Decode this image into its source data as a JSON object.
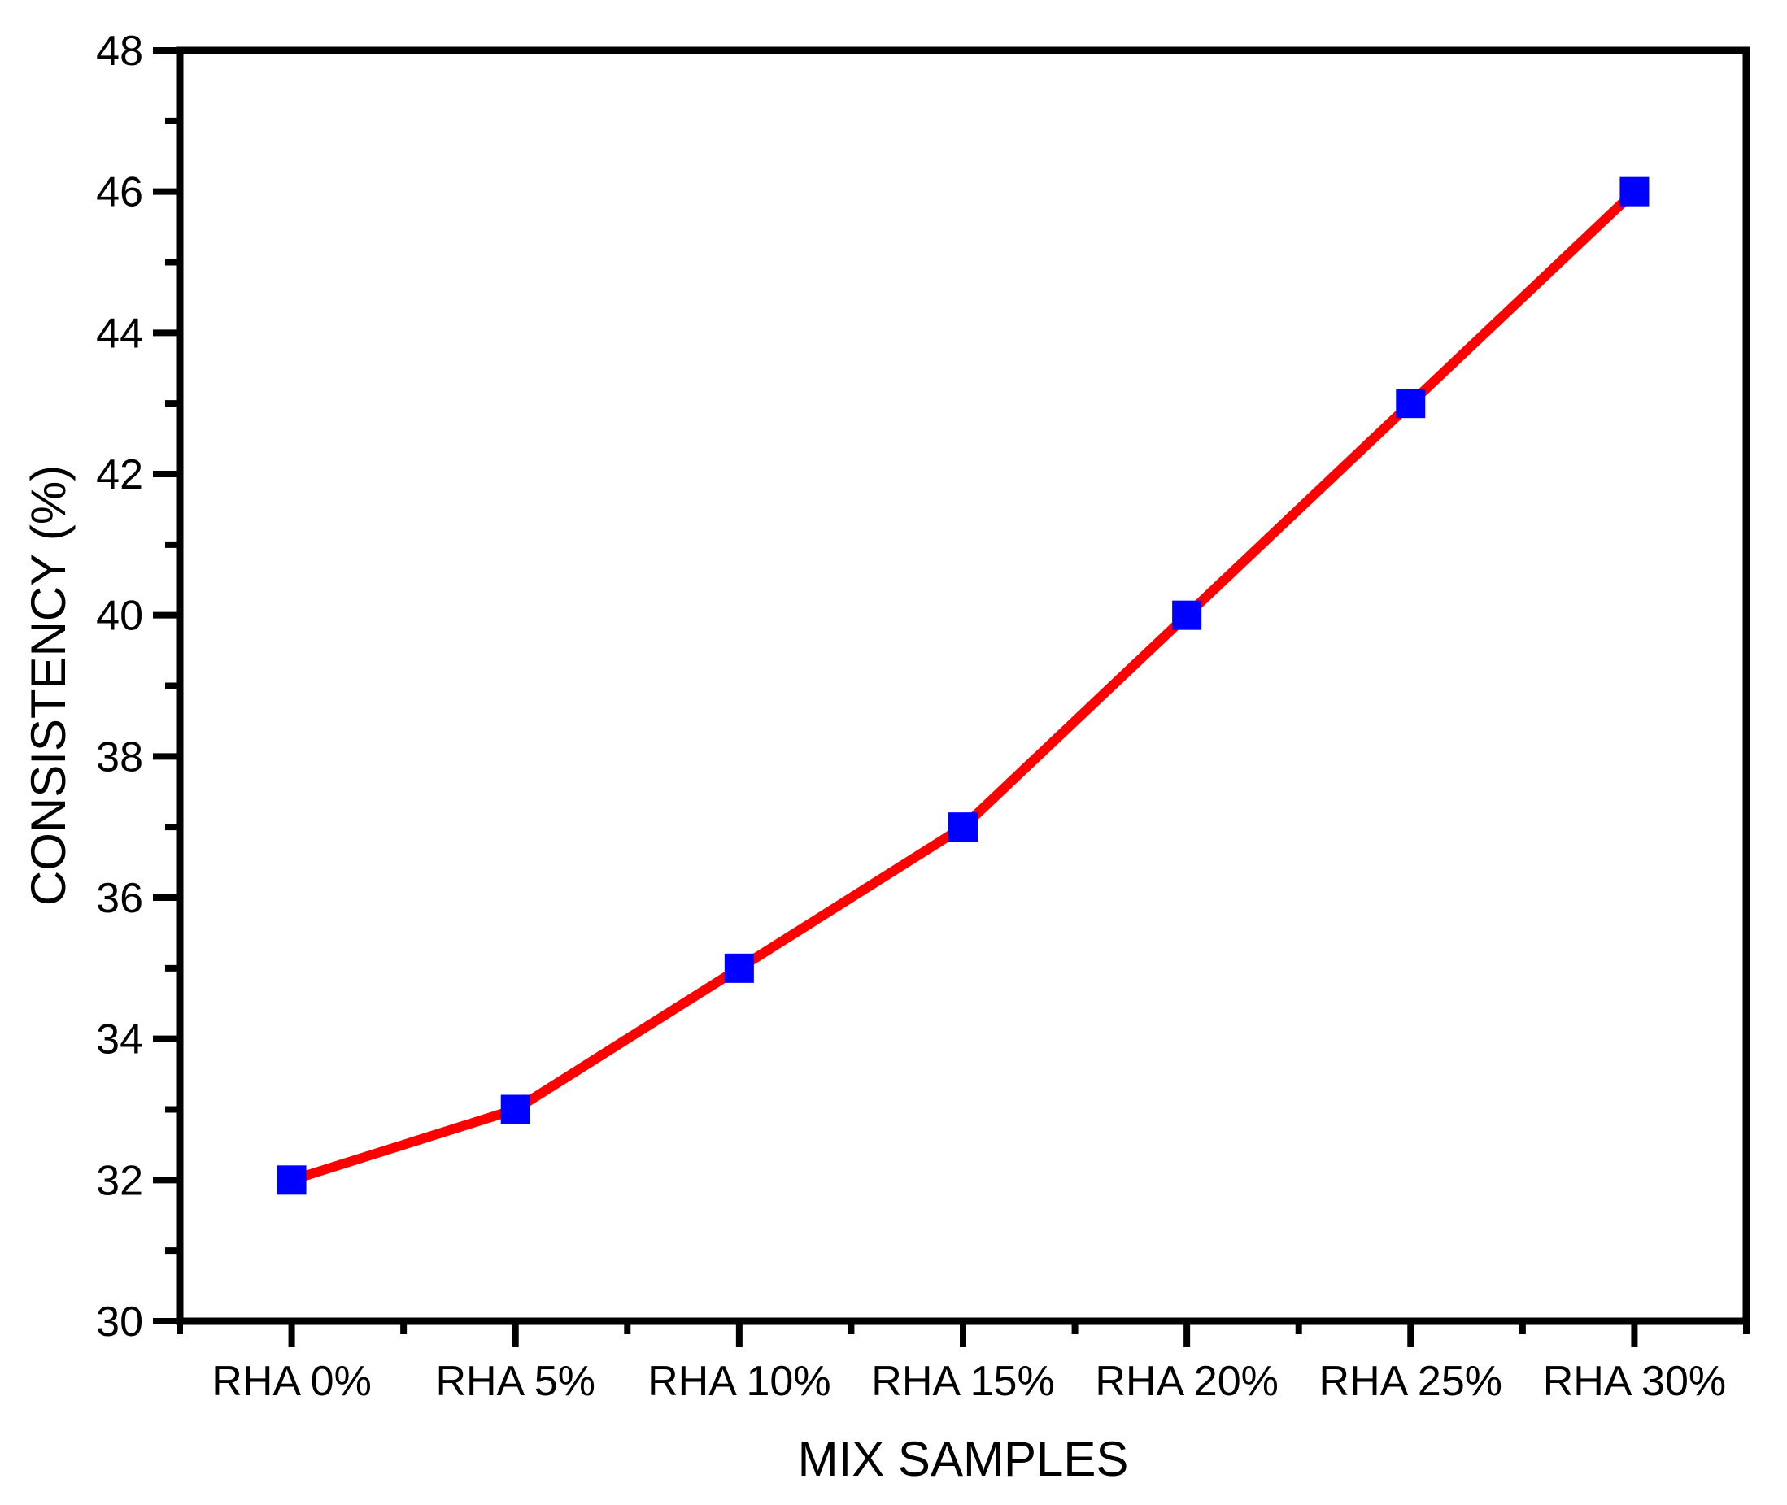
{
  "chart_data": {
    "type": "line",
    "categories": [
      "RHA 0%",
      "RHA 5%",
      "RHA 10%",
      "RHA 15%",
      "RHA 20%",
      "RHA 25%",
      "RHA 30%"
    ],
    "series": [
      {
        "name": "Consistency",
        "values": [
          32,
          33,
          35,
          37,
          40,
          43,
          46
        ]
      }
    ],
    "title": "",
    "xlabel": "MIX SAMPLES",
    "ylabel": "CONSISTENCY (%)",
    "ylim": [
      30,
      48
    ],
    "y_major_step": 2,
    "y_minor_step": 1,
    "y_tick_labels": [
      "30",
      "32",
      "34",
      "36",
      "38",
      "40",
      "42",
      "44",
      "46",
      "48"
    ],
    "grid": false,
    "legend_position": "none",
    "line_color": "#FF0000",
    "marker_color": "#0000FF",
    "marker_shape": "square",
    "axis_color": "#000000",
    "background_color": "#FFFFFF"
  }
}
